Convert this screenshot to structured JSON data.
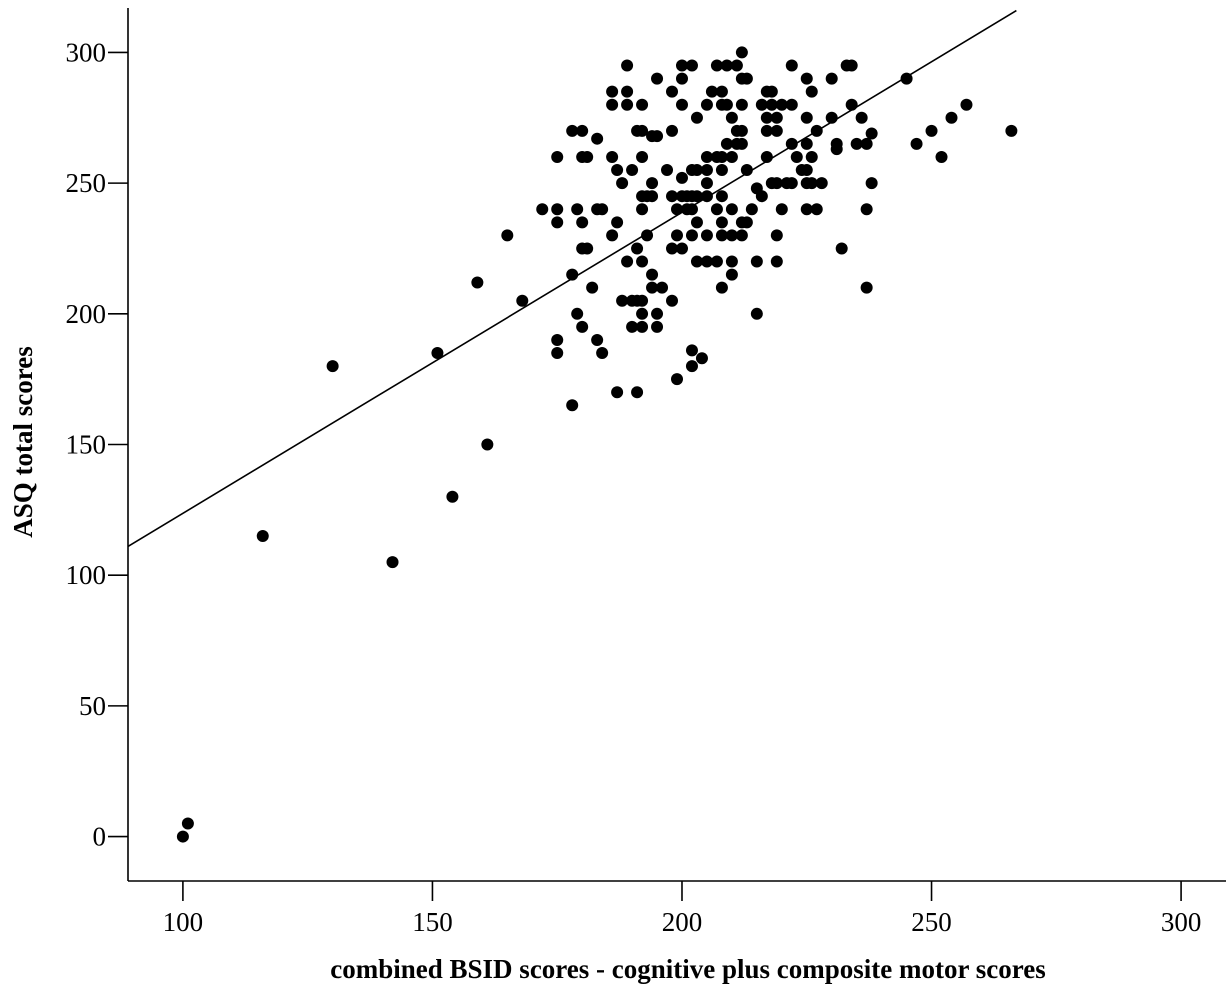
{
  "chart_data": {
    "type": "scatter",
    "title": "",
    "xlabel": "combined BSID scores - cognitive plus composite motor scores",
    "ylabel": "ASQ total scores",
    "xlim": [
      89,
      309
    ],
    "ylim": [
      -17,
      317
    ],
    "x_ticks": [
      100,
      150,
      200,
      250,
      300
    ],
    "y_ticks": [
      0,
      50,
      100,
      150,
      200,
      250,
      300
    ],
    "grid": false,
    "legend": "none",
    "point_color": "#000000",
    "line_color": "#000000",
    "fit_line": {
      "x": [
        89,
        267
      ],
      "y": [
        111,
        316
      ]
    },
    "points": [
      [
        100,
        0
      ],
      [
        101,
        5
      ],
      [
        116,
        115
      ],
      [
        130,
        180
      ],
      [
        142,
        105
      ],
      [
        151,
        185
      ],
      [
        154,
        130
      ],
      [
        159,
        212
      ],
      [
        161,
        150
      ],
      [
        165,
        230
      ],
      [
        168,
        205
      ],
      [
        172,
        240
      ],
      [
        175,
        260
      ],
      [
        175,
        240
      ],
      [
        175,
        235
      ],
      [
        175,
        190
      ],
      [
        175,
        185
      ],
      [
        178,
        270
      ],
      [
        178,
        215
      ],
      [
        178,
        165
      ],
      [
        179,
        240
      ],
      [
        179,
        200
      ],
      [
        180,
        270
      ],
      [
        180,
        260
      ],
      [
        180,
        235
      ],
      [
        180,
        225
      ],
      [
        180,
        195
      ],
      [
        181,
        260
      ],
      [
        181,
        225
      ],
      [
        182,
        210
      ],
      [
        183,
        267
      ],
      [
        183,
        240
      ],
      [
        183,
        190
      ],
      [
        184,
        240
      ],
      [
        184,
        185
      ],
      [
        186,
        285
      ],
      [
        186,
        280
      ],
      [
        186,
        260
      ],
      [
        186,
        230
      ],
      [
        187,
        255
      ],
      [
        187,
        235
      ],
      [
        187,
        170
      ],
      [
        188,
        250
      ],
      [
        188,
        205
      ],
      [
        189,
        295
      ],
      [
        189,
        285
      ],
      [
        189,
        280
      ],
      [
        189,
        220
      ],
      [
        190,
        255
      ],
      [
        190,
        205
      ],
      [
        190,
        195
      ],
      [
        191,
        270
      ],
      [
        191,
        225
      ],
      [
        191,
        205
      ],
      [
        191,
        170
      ],
      [
        192,
        280
      ],
      [
        192,
        270
      ],
      [
        192,
        260
      ],
      [
        192,
        245
      ],
      [
        192,
        240
      ],
      [
        192,
        220
      ],
      [
        192,
        205
      ],
      [
        192,
        200
      ],
      [
        192,
        195
      ],
      [
        193,
        245
      ],
      [
        193,
        230
      ],
      [
        194,
        268
      ],
      [
        194,
        250
      ],
      [
        194,
        245
      ],
      [
        194,
        215
      ],
      [
        194,
        210
      ],
      [
        195,
        290
      ],
      [
        195,
        268
      ],
      [
        195,
        200
      ],
      [
        195,
        195
      ],
      [
        196,
        210
      ],
      [
        197,
        255
      ],
      [
        198,
        285
      ],
      [
        198,
        270
      ],
      [
        198,
        245
      ],
      [
        198,
        225
      ],
      [
        198,
        205
      ],
      [
        199,
        240
      ],
      [
        199,
        230
      ],
      [
        199,
        175
      ],
      [
        200,
        295
      ],
      [
        200,
        290
      ],
      [
        200,
        280
      ],
      [
        200,
        252
      ],
      [
        200,
        245
      ],
      [
        200,
        225
      ],
      [
        201,
        245
      ],
      [
        201,
        240
      ],
      [
        202,
        295
      ],
      [
        202,
        255
      ],
      [
        202,
        245
      ],
      [
        202,
        240
      ],
      [
        202,
        230
      ],
      [
        202,
        186
      ],
      [
        202,
        180
      ],
      [
        203,
        275
      ],
      [
        203,
        255
      ],
      [
        203,
        245
      ],
      [
        203,
        235
      ],
      [
        203,
        220
      ],
      [
        204,
        183
      ],
      [
        205,
        280
      ],
      [
        205,
        260
      ],
      [
        205,
        255
      ],
      [
        205,
        250
      ],
      [
        205,
        245
      ],
      [
        205,
        230
      ],
      [
        205,
        220
      ],
      [
        206,
        285
      ],
      [
        207,
        295
      ],
      [
        207,
        260
      ],
      [
        207,
        240
      ],
      [
        207,
        220
      ],
      [
        208,
        285
      ],
      [
        208,
        280
      ],
      [
        208,
        260
      ],
      [
        208,
        255
      ],
      [
        208,
        245
      ],
      [
        208,
        235
      ],
      [
        208,
        230
      ],
      [
        208,
        210
      ],
      [
        209,
        295
      ],
      [
        209,
        280
      ],
      [
        209,
        265
      ],
      [
        210,
        275
      ],
      [
        210,
        260
      ],
      [
        210,
        240
      ],
      [
        210,
        230
      ],
      [
        210,
        220
      ],
      [
        210,
        215
      ],
      [
        211,
        295
      ],
      [
        211,
        270
      ],
      [
        211,
        265
      ],
      [
        212,
        300
      ],
      [
        212,
        290
      ],
      [
        212,
        280
      ],
      [
        212,
        270
      ],
      [
        212,
        265
      ],
      [
        212,
        235
      ],
      [
        212,
        230
      ],
      [
        213,
        290
      ],
      [
        213,
        255
      ],
      [
        213,
        235
      ],
      [
        214,
        240
      ],
      [
        215,
        248
      ],
      [
        215,
        220
      ],
      [
        215,
        200
      ],
      [
        216,
        280
      ],
      [
        216,
        245
      ],
      [
        217,
        285
      ],
      [
        217,
        275
      ],
      [
        217,
        270
      ],
      [
        217,
        260
      ],
      [
        218,
        285
      ],
      [
        218,
        280
      ],
      [
        218,
        250
      ],
      [
        219,
        275
      ],
      [
        219,
        270
      ],
      [
        219,
        250
      ],
      [
        219,
        230
      ],
      [
        219,
        220
      ],
      [
        220,
        280
      ],
      [
        220,
        240
      ],
      [
        221,
        250
      ],
      [
        222,
        295
      ],
      [
        222,
        280
      ],
      [
        222,
        265
      ],
      [
        222,
        250
      ],
      [
        223,
        260
      ],
      [
        224,
        255
      ],
      [
        225,
        290
      ],
      [
        225,
        275
      ],
      [
        225,
        265
      ],
      [
        225,
        255
      ],
      [
        225,
        250
      ],
      [
        225,
        240
      ],
      [
        226,
        285
      ],
      [
        226,
        260
      ],
      [
        226,
        250
      ],
      [
        227,
        270
      ],
      [
        227,
        240
      ],
      [
        228,
        250
      ],
      [
        230,
        290
      ],
      [
        230,
        275
      ],
      [
        231,
        265
      ],
      [
        231,
        263
      ],
      [
        232,
        225
      ],
      [
        233,
        295
      ],
      [
        234,
        295
      ],
      [
        234,
        280
      ],
      [
        235,
        265
      ],
      [
        236,
        275
      ],
      [
        237,
        265
      ],
      [
        237,
        240
      ],
      [
        237,
        210
      ],
      [
        238,
        269
      ],
      [
        238,
        250
      ],
      [
        245,
        290
      ],
      [
        247,
        265
      ],
      [
        250,
        270
      ],
      [
        252,
        260
      ],
      [
        254,
        275
      ],
      [
        257,
        280
      ],
      [
        266,
        270
      ]
    ]
  }
}
